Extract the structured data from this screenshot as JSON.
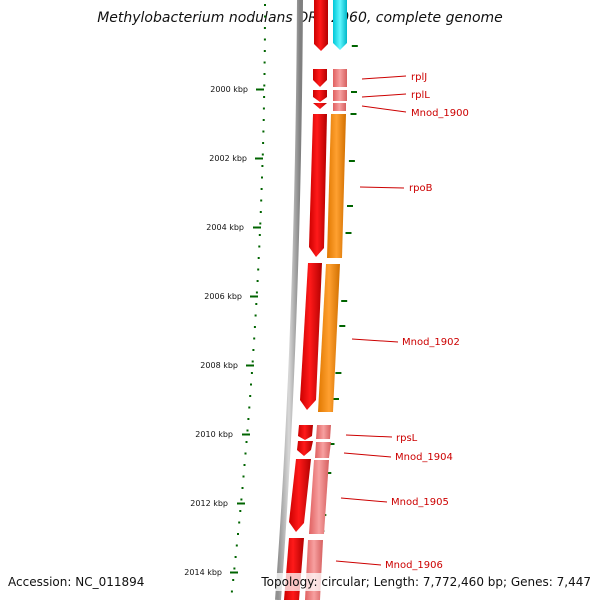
{
  "title": "Methylobacterium nodulans ORS 2060, complete genome",
  "accession": "Accession: NC_011894",
  "topology": "Topology: circular; Length: 7,772,460 bp; Genes: 7,447",
  "kbp_ticks": [
    {
      "label": "2000 kbp"
    },
    {
      "label": "2002 kbp"
    },
    {
      "label": "2004 kbp"
    },
    {
      "label": "2006 kbp"
    },
    {
      "label": "2008 kbp"
    },
    {
      "label": "2010 kbp"
    },
    {
      "label": "2012 kbp"
    },
    {
      "label": "2014 kbp"
    }
  ],
  "genes": [
    {
      "name": "rplJ"
    },
    {
      "name": "rplL"
    },
    {
      "name": "Mnod_1900"
    },
    {
      "name": "rpoB"
    },
    {
      "name": "Mnod_1902"
    },
    {
      "name": "rpsL"
    },
    {
      "name": "Mnod_1904"
    },
    {
      "name": "Mnod_1905"
    },
    {
      "name": "Mnod_1906"
    }
  ],
  "colors": {
    "gene_red": "#ee0000",
    "gene_pink": "#f08080",
    "cds_orange": "#ff8c00",
    "cyan": "#00e5ee",
    "scale_green": "#006400",
    "label_red": "#cc0000"
  }
}
